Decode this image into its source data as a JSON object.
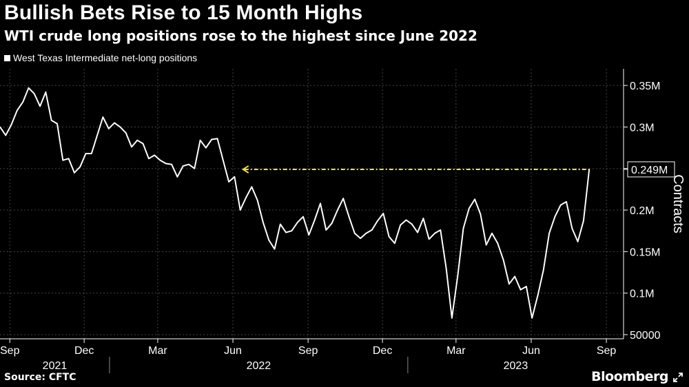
{
  "title": "Bullish Bets Rise to 15 Month Highs",
  "subtitle": "WTI crude long positions rose to the highest since June 2022",
  "source": "Source: CFTC",
  "brand": "Bloomberg",
  "colors": {
    "background": "#000000",
    "line": "#ffffff",
    "grid": "#444444",
    "annotation": "#f2e52b"
  },
  "chart_data": {
    "type": "line",
    "title": "Bullish Bets Rise to 15 Month Highs",
    "subtitle": "WTI crude long positions rose to the highest since June 2022",
    "xlabel": "",
    "ylabel": "Contracts",
    "legend_position": "top-left",
    "grid": "vertical dashed lines at quarter starts",
    "ylim": [
      45000,
      370000
    ],
    "x_date_range": [
      "2021-08-20",
      "2023-09-22"
    ],
    "y_ticks": [
      {
        "value": 50000,
        "label": "50000"
      },
      {
        "value": 100000,
        "label": "0.1M"
      },
      {
        "value": 150000,
        "label": "0.15M"
      },
      {
        "value": 200000,
        "label": "0.2M"
      },
      {
        "value": 250000,
        "label": "0.25M"
      },
      {
        "value": 300000,
        "label": "0.3M"
      },
      {
        "value": 350000,
        "label": "0.35M"
      }
    ],
    "x_ticks": [
      {
        "date": "2021-09-01",
        "label": "Sep"
      },
      {
        "date": "2021-12-01",
        "label": "Dec"
      },
      {
        "date": "2022-03-01",
        "label": "Mar"
      },
      {
        "date": "2022-06-01",
        "label": "Jun"
      },
      {
        "date": "2022-09-01",
        "label": "Sep"
      },
      {
        "date": "2022-12-01",
        "label": "Dec"
      },
      {
        "date": "2023-03-01",
        "label": "Mar"
      },
      {
        "date": "2023-06-01",
        "label": "Jun"
      },
      {
        "date": "2023-09-01",
        "label": "Sep"
      }
    ],
    "year_labels": [
      {
        "label": "2021",
        "start": "2021-08-20",
        "end": "2022-01-01"
      },
      {
        "label": "2022",
        "start": "2022-01-01",
        "end": "2023-01-01"
      },
      {
        "label": "2023",
        "start": "2023-01-01",
        "end": "2023-09-22"
      }
    ],
    "year_separators": [
      "2022-01-01",
      "2023-01-01"
    ],
    "series": [
      {
        "name": "West Texas Intermediate net-long positions",
        "points": [
          [
            "2021-08-20",
            300000
          ],
          [
            "2021-08-27",
            290000
          ],
          [
            "2021-09-03",
            303000
          ],
          [
            "2021-09-10",
            320000
          ],
          [
            "2021-09-17",
            330000
          ],
          [
            "2021-09-24",
            347000
          ],
          [
            "2021-10-01",
            340000
          ],
          [
            "2021-10-08",
            325000
          ],
          [
            "2021-10-15",
            342000
          ],
          [
            "2021-10-22",
            308000
          ],
          [
            "2021-10-29",
            304000
          ],
          [
            "2021-11-05",
            260000
          ],
          [
            "2021-11-12",
            262000
          ],
          [
            "2021-11-19",
            245000
          ],
          [
            "2021-11-26",
            252000
          ],
          [
            "2021-12-03",
            268000
          ],
          [
            "2021-12-10",
            268000
          ],
          [
            "2021-12-17",
            290000
          ],
          [
            "2021-12-24",
            312000
          ],
          [
            "2021-12-31",
            298000
          ],
          [
            "2022-01-07",
            305000
          ],
          [
            "2022-01-14",
            300000
          ],
          [
            "2022-01-21",
            293000
          ],
          [
            "2022-01-28",
            276000
          ],
          [
            "2022-02-04",
            284000
          ],
          [
            "2022-02-11",
            280000
          ],
          [
            "2022-02-18",
            262000
          ],
          [
            "2022-02-25",
            266000
          ],
          [
            "2022-03-04",
            260000
          ],
          [
            "2022-03-11",
            256000
          ],
          [
            "2022-03-18",
            255000
          ],
          [
            "2022-03-25",
            240000
          ],
          [
            "2022-04-01",
            253000
          ],
          [
            "2022-04-08",
            255000
          ],
          [
            "2022-04-15",
            250000
          ],
          [
            "2022-04-22",
            284000
          ],
          [
            "2022-04-29",
            275000
          ],
          [
            "2022-05-06",
            285000
          ],
          [
            "2022-05-13",
            286000
          ],
          [
            "2022-05-20",
            260000
          ],
          [
            "2022-05-27",
            234000
          ],
          [
            "2022-06-03",
            240000
          ],
          [
            "2022-06-10",
            200000
          ],
          [
            "2022-06-17",
            215000
          ],
          [
            "2022-06-24",
            228000
          ],
          [
            "2022-07-01",
            212000
          ],
          [
            "2022-07-08",
            185000
          ],
          [
            "2022-07-15",
            164000
          ],
          [
            "2022-07-22",
            153000
          ],
          [
            "2022-07-29",
            183000
          ],
          [
            "2022-08-05",
            173000
          ],
          [
            "2022-08-12",
            175000
          ],
          [
            "2022-08-19",
            185000
          ],
          [
            "2022-08-26",
            192000
          ],
          [
            "2022-09-02",
            170000
          ],
          [
            "2022-09-09",
            188000
          ],
          [
            "2022-09-16",
            208000
          ],
          [
            "2022-09-23",
            176000
          ],
          [
            "2022-09-30",
            184000
          ],
          [
            "2022-10-07",
            200000
          ],
          [
            "2022-10-14",
            214000
          ],
          [
            "2022-10-21",
            192000
          ],
          [
            "2022-10-28",
            172000
          ],
          [
            "2022-11-04",
            166000
          ],
          [
            "2022-11-11",
            172000
          ],
          [
            "2022-11-18",
            176000
          ],
          [
            "2022-11-25",
            187000
          ],
          [
            "2022-12-02",
            196000
          ],
          [
            "2022-12-09",
            168000
          ],
          [
            "2022-12-16",
            160000
          ],
          [
            "2022-12-23",
            182000
          ],
          [
            "2022-12-30",
            188000
          ],
          [
            "2023-01-06",
            183000
          ],
          [
            "2023-01-13",
            173000
          ],
          [
            "2023-01-20",
            190000
          ],
          [
            "2023-01-27",
            165000
          ],
          [
            "2023-02-03",
            172000
          ],
          [
            "2023-02-10",
            176000
          ],
          [
            "2023-02-17",
            130000
          ],
          [
            "2023-02-24",
            70000
          ],
          [
            "2023-03-03",
            120000
          ],
          [
            "2023-03-10",
            178000
          ],
          [
            "2023-03-17",
            202000
          ],
          [
            "2023-03-24",
            213000
          ],
          [
            "2023-03-31",
            195000
          ],
          [
            "2023-04-07",
            158000
          ],
          [
            "2023-04-14",
            172000
          ],
          [
            "2023-04-21",
            160000
          ],
          [
            "2023-04-28",
            140000
          ],
          [
            "2023-05-05",
            111000
          ],
          [
            "2023-05-12",
            120000
          ],
          [
            "2023-05-19",
            104000
          ],
          [
            "2023-05-26",
            108000
          ],
          [
            "2023-06-02",
            70000
          ],
          [
            "2023-06-09",
            97000
          ],
          [
            "2023-06-16",
            128000
          ],
          [
            "2023-06-23",
            172000
          ],
          [
            "2023-06-30",
            192000
          ],
          [
            "2023-07-07",
            206000
          ],
          [
            "2023-07-14",
            210000
          ],
          [
            "2023-07-21",
            178000
          ],
          [
            "2023-07-28",
            162000
          ],
          [
            "2023-08-04",
            187000
          ],
          [
            "2023-08-11",
            249000
          ]
        ]
      }
    ],
    "annotations": {
      "last_value_label": "0.249M",
      "reference_value": 249000,
      "reference_from": "2022-06-10"
    }
  }
}
